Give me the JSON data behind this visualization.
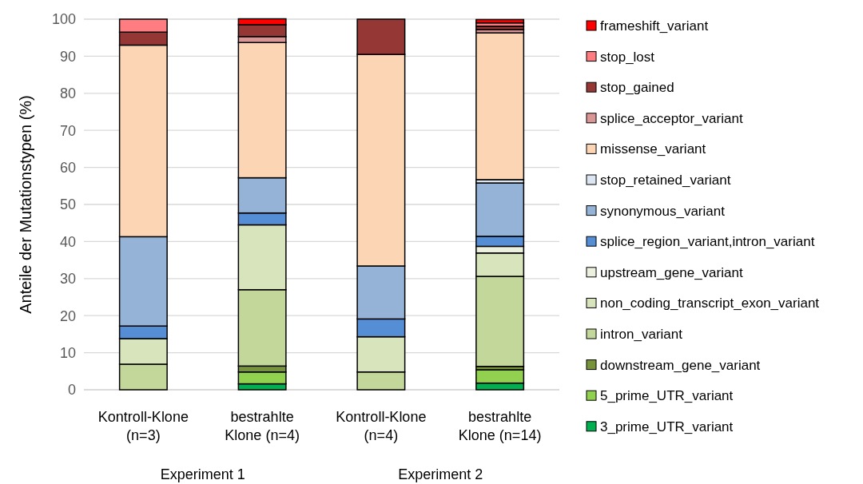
{
  "chart_data": {
    "type": "bar",
    "stacked": true,
    "ylabel": "Anteile der Mutationstypen (%)",
    "categories": [
      "Kontroll-Klone\n(n=3)",
      "bestrahlte\nKlone (n=4)",
      "Kontroll-Klone\n(n=4)",
      "bestrahlte\nKlone (n=14)"
    ],
    "annotations": [
      "Experiment 1",
      "Experiment 2"
    ],
    "ylim": [
      0,
      100
    ],
    "yticks": [
      0,
      10,
      20,
      30,
      40,
      50,
      60,
      70,
      80,
      90,
      100
    ],
    "grid": "y",
    "legend": "right",
    "series": [
      {
        "name": "3_prime_UTR_variant",
        "color": "#00b050",
        "values": [
          null,
          1.6,
          null,
          1.8
        ]
      },
      {
        "name": "5_prime_UTR_variant",
        "color": "#92d050",
        "values": [
          null,
          3.2,
          null,
          3.6
        ]
      },
      {
        "name": "downstream_gene_variant",
        "color": "#77933c",
        "values": [
          null,
          1.6,
          null,
          0.9
        ]
      },
      {
        "name": "intron_variant",
        "color": "#c4d79b",
        "values": [
          6.9,
          20.6,
          4.8,
          24.3
        ]
      },
      {
        "name": "non_coding_transcript_exon_variant",
        "color": "#d8e4bc",
        "values": [
          6.9,
          17.5,
          9.5,
          6.3
        ]
      },
      {
        "name": "upstream_gene_variant",
        "color": "#ebf1de",
        "values": [
          null,
          null,
          null,
          1.8
        ]
      },
      {
        "name": "splice_region_variant,intron_variant",
        "color": "#558ed5",
        "values": [
          3.4,
          3.2,
          4.8,
          2.7
        ]
      },
      {
        "name": "synonymous_variant",
        "color": "#95b3d7",
        "values": [
          24.1,
          9.5,
          14.3,
          14.4
        ]
      },
      {
        "name": "stop_retained_variant",
        "color": "#dce6f2",
        "values": [
          null,
          null,
          null,
          0.9
        ]
      },
      {
        "name": "missense_variant",
        "color": "#fcd5b5",
        "values": [
          51.7,
          36.5,
          57.1,
          39.6
        ]
      },
      {
        "name": "splice_acceptor_variant",
        "color": "#da9694",
        "values": [
          null,
          1.6,
          null,
          0.9
        ]
      },
      {
        "name": "stop_gained",
        "color": "#953735",
        "values": [
          3.5,
          3.2,
          9.5,
          0.9
        ]
      },
      {
        "name": "stop_lost",
        "color": "#ff7c80",
        "values": [
          3.5,
          null,
          null,
          0.9
        ]
      },
      {
        "name": "frameshift_variant",
        "color": "#ff0000",
        "values": [
          null,
          1.6,
          null,
          0.9
        ]
      }
    ]
  }
}
